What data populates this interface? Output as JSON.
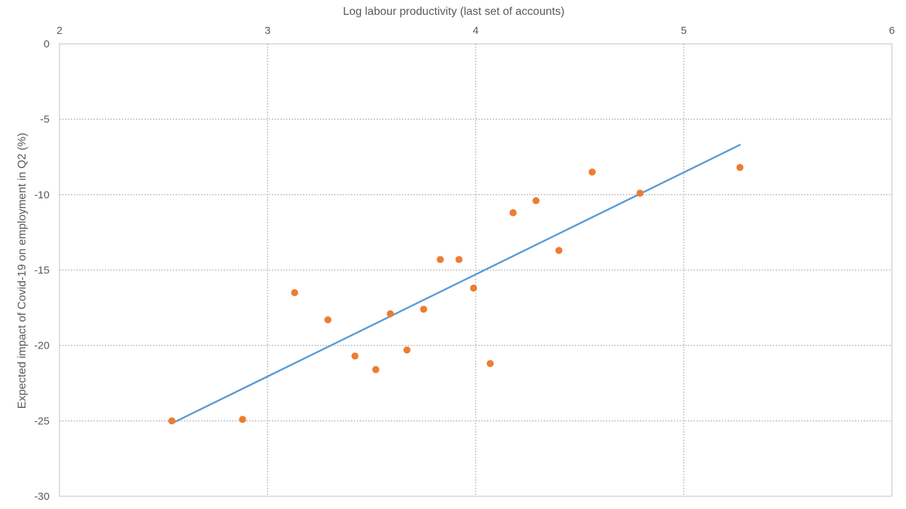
{
  "chart_data": {
    "type": "scatter",
    "title": "",
    "xlabel": "Log labour productivity (last set of accounts)",
    "ylabel": "Expected impact of Covid-19 on employment in Q2 (%)",
    "xlim": [
      2,
      6
    ],
    "ylim": [
      -30,
      0
    ],
    "x_ticks": [
      2,
      3,
      4,
      5,
      6
    ],
    "y_ticks": [
      0,
      -5,
      -10,
      -15,
      -20,
      -25,
      -30
    ],
    "x_tick_labels": [
      "2",
      "3",
      "4",
      "5",
      "6"
    ],
    "y_tick_labels": [
      "0",
      "-5",
      "-10",
      "-15",
      "-20",
      "-25",
      "-30"
    ],
    "x_axis_position": "top",
    "grid": true,
    "legend": "none",
    "series": [
      {
        "type": "scatter",
        "color": "#ED7D31",
        "points": [
          {
            "x": 2.54,
            "y": -25.0
          },
          {
            "x": 2.88,
            "y": -24.9
          },
          {
            "x": 3.13,
            "y": -16.5
          },
          {
            "x": 3.29,
            "y": -18.3
          },
          {
            "x": 3.42,
            "y": -20.7
          },
          {
            "x": 3.52,
            "y": -21.6
          },
          {
            "x": 3.59,
            "y": -17.9
          },
          {
            "x": 3.67,
            "y": -20.3
          },
          {
            "x": 3.75,
            "y": -17.6
          },
          {
            "x": 3.83,
            "y": -14.3
          },
          {
            "x": 3.92,
            "y": -14.3
          },
          {
            "x": 3.99,
            "y": -16.2
          },
          {
            "x": 4.07,
            "y": -21.2
          },
          {
            "x": 4.18,
            "y": -11.2
          },
          {
            "x": 4.29,
            "y": -10.4
          },
          {
            "x": 4.4,
            "y": -13.7
          },
          {
            "x": 4.56,
            "y": -8.5
          },
          {
            "x": 4.79,
            "y": -9.9
          },
          {
            "x": 5.27,
            "y": -8.2
          }
        ]
      },
      {
        "type": "line",
        "color": "#5B9BD5",
        "points": [
          {
            "x": 2.55,
            "y": -25.1
          },
          {
            "x": 5.27,
            "y": -6.7
          }
        ]
      }
    ]
  }
}
